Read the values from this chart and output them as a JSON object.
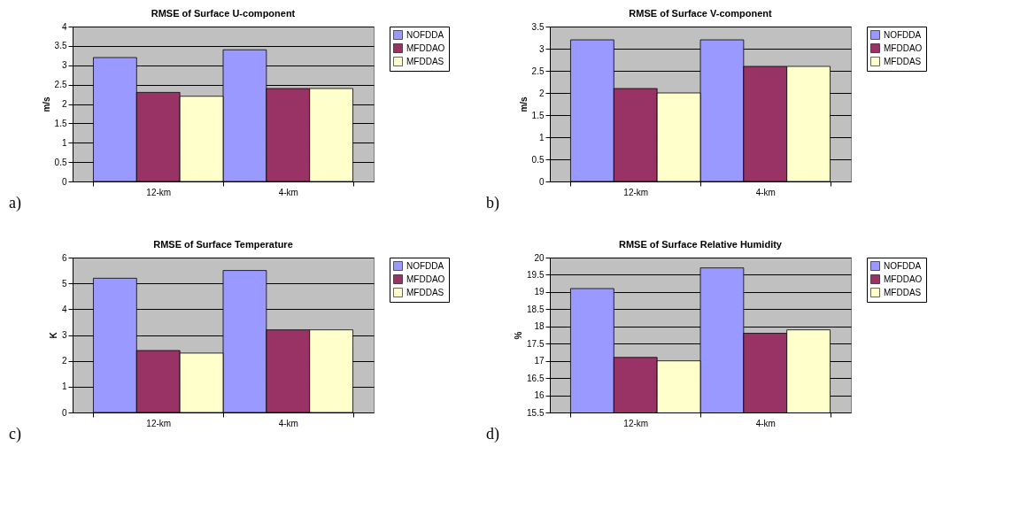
{
  "chart_data": [
    {
      "type": "bar",
      "title": "RMSE of Surface U-component",
      "ylabel": "m/s",
      "categories": [
        "12-km",
        "4-km"
      ],
      "series": [
        {
          "name": "NOFDDA",
          "color": "#9999ff",
          "values": [
            3.2,
            3.4
          ]
        },
        {
          "name": "MFDDAO",
          "color": "#993366",
          "values": [
            2.3,
            2.4
          ]
        },
        {
          "name": "MFDDAS",
          "color": "#ffffcc",
          "values": [
            2.2,
            2.4
          ]
        }
      ],
      "ylim": [
        0,
        4
      ],
      "yticks": [
        0,
        0.5,
        1,
        1.5,
        2,
        2.5,
        3,
        3.5,
        4
      ],
      "grid": "y",
      "legend": "right",
      "annotations": [
        "a)"
      ]
    },
    {
      "type": "bar",
      "title": "RMSE of Surface V-component",
      "ylabel": "m/s",
      "categories": [
        "12-km",
        "4-km"
      ],
      "series": [
        {
          "name": "NOFDDA",
          "color": "#9999ff",
          "values": [
            3.2,
            3.2
          ]
        },
        {
          "name": "MFDDAO",
          "color": "#993366",
          "values": [
            2.1,
            2.6
          ]
        },
        {
          "name": "MFDDAS",
          "color": "#ffffcc",
          "values": [
            2.0,
            2.6
          ]
        }
      ],
      "ylim": [
        0,
        3.5
      ],
      "yticks": [
        0,
        0.5,
        1,
        1.5,
        2,
        2.5,
        3,
        3.5
      ],
      "grid": "y",
      "legend": "right",
      "annotations": [
        "b)"
      ]
    },
    {
      "type": "bar",
      "title": "RMSE of Surface Temperature",
      "ylabel": "K",
      "categories": [
        "12-km",
        "4-km"
      ],
      "series": [
        {
          "name": "NOFDDA",
          "color": "#9999ff",
          "values": [
            5.2,
            5.5
          ]
        },
        {
          "name": "MFDDAO",
          "color": "#993366",
          "values": [
            2.4,
            3.2
          ]
        },
        {
          "name": "MFDDAS",
          "color": "#ffffcc",
          "values": [
            2.3,
            3.2
          ]
        }
      ],
      "ylim": [
        0,
        6
      ],
      "yticks": [
        0,
        1,
        2,
        3,
        4,
        5,
        6
      ],
      "grid": "y",
      "legend": "right",
      "annotations": [
        "c)"
      ]
    },
    {
      "type": "bar",
      "title": "RMSE of Surface Relative Humidity",
      "ylabel": "%",
      "categories": [
        "12-km",
        "4-km"
      ],
      "series": [
        {
          "name": "NOFDDA",
          "color": "#9999ff",
          "values": [
            19.1,
            19.7
          ]
        },
        {
          "name": "MFDDAO",
          "color": "#993366",
          "values": [
            17.1,
            17.8
          ]
        },
        {
          "name": "MFDDAS",
          "color": "#ffffcc",
          "values": [
            17.0,
            17.9
          ]
        }
      ],
      "ylim": [
        15.5,
        20
      ],
      "yticks": [
        15.5,
        16,
        16.5,
        17,
        17.5,
        18,
        18.5,
        19,
        19.5,
        20
      ],
      "grid": "y",
      "legend": "right",
      "annotations": [
        "d)"
      ]
    }
  ]
}
